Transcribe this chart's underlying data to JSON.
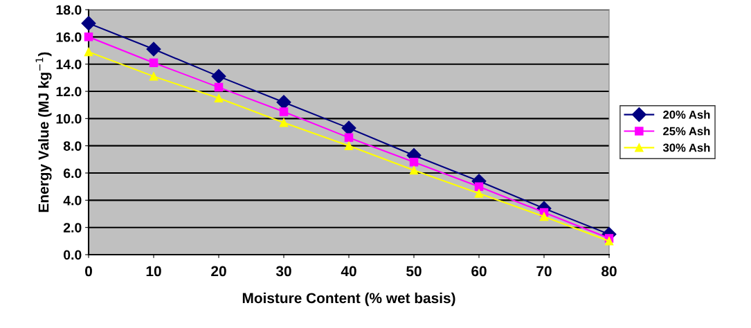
{
  "chart_data": {
    "type": "line",
    "xlabel": "Moisture Content (% wet basis)",
    "ylabel": "Energy Value (MJ kg$^{−1}$)",
    "x": [
      0,
      10,
      20,
      30,
      40,
      50,
      60,
      70,
      80
    ],
    "series": [
      {
        "name": "20% Ash",
        "color": "#000080",
        "marker": "diamond",
        "values": [
          17.0,
          15.1,
          13.1,
          11.2,
          9.3,
          7.3,
          5.4,
          3.4,
          1.5
        ]
      },
      {
        "name": "25% Ash",
        "color": "#ff00ff",
        "marker": "square",
        "values": [
          16.0,
          14.1,
          12.3,
          10.5,
          8.6,
          6.8,
          5.0,
          3.1,
          1.2
        ]
      },
      {
        "name": "30% Ash",
        "color": "#ffff00",
        "marker": "triangle",
        "values": [
          14.9,
          13.1,
          11.5,
          9.7,
          8.0,
          6.2,
          4.5,
          2.8,
          1.0
        ]
      }
    ],
    "xlim": [
      0,
      80
    ],
    "xticks": [
      0,
      10,
      20,
      30,
      40,
      50,
      60,
      70,
      80
    ],
    "ylim": [
      0,
      18
    ],
    "yticks": [
      {
        "value": 0,
        "label": "0.0"
      },
      {
        "value": 2,
        "label": "2.0"
      },
      {
        "value": 4,
        "label": "4.0"
      },
      {
        "value": 6,
        "label": "6.0"
      },
      {
        "value": 8,
        "label": "8.0"
      },
      {
        "value": 10,
        "label": "10.0"
      },
      {
        "value": 12,
        "label": "12.0"
      },
      {
        "value": 14,
        "label": "14.0"
      },
      {
        "value": 16,
        "label": "16.0"
      },
      {
        "value": 18,
        "label": "18.0"
      }
    ],
    "grid": "y",
    "legend": "right",
    "line_style": "solid"
  }
}
